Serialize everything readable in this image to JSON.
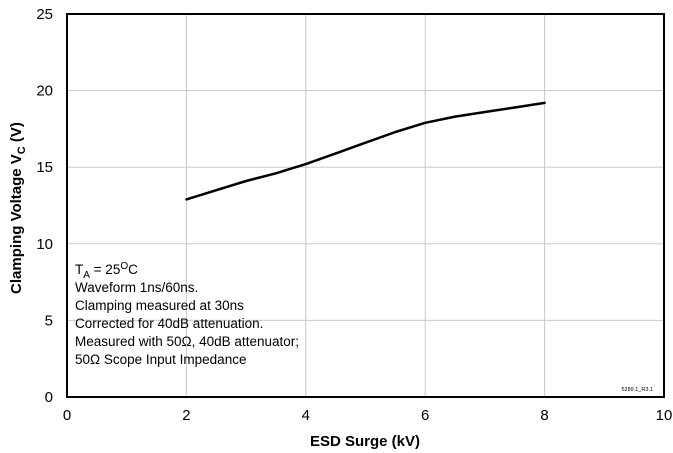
{
  "chart_data": {
    "type": "line",
    "xlabel": "ESD Surge (kV)",
    "ylabel": "Clamping Voltage V",
    "ylabel_subscript": "C",
    "ylabel_unit": "(V)",
    "xlim": [
      0,
      10
    ],
    "ylim": [
      0,
      25
    ],
    "x_ticks": [
      "0",
      "2",
      "4",
      "6",
      "8",
      "10"
    ],
    "y_ticks": [
      "0",
      "5",
      "10",
      "15",
      "20",
      "25"
    ],
    "grid": true,
    "series": [
      {
        "color": "#000000",
        "x": [
          2,
          2.5,
          3,
          3.5,
          4,
          4.5,
          5,
          5.5,
          6,
          6.5,
          7,
          7.5,
          8
        ],
        "y": [
          12.9,
          13.5,
          14.1,
          14.6,
          15.2,
          15.9,
          16.6,
          17.3,
          17.9,
          18.3,
          18.6,
          18.9,
          19.2
        ]
      }
    ],
    "annotation": {
      "line1": {
        "main": "T",
        "sub": "A",
        "eq": " = 25",
        "sup": "O",
        "unit": "C"
      },
      "line2": "Waveform 1ns/60ns.",
      "line3": "Clamping measured at 30ns",
      "line4": "Corrected for 40dB attenuation.",
      "line5": "Measured with 50Ω, 40dB attenuator;",
      "line6": "50Ω Scope Input Impedance"
    },
    "figure_code": "5289.1_R3.1"
  }
}
